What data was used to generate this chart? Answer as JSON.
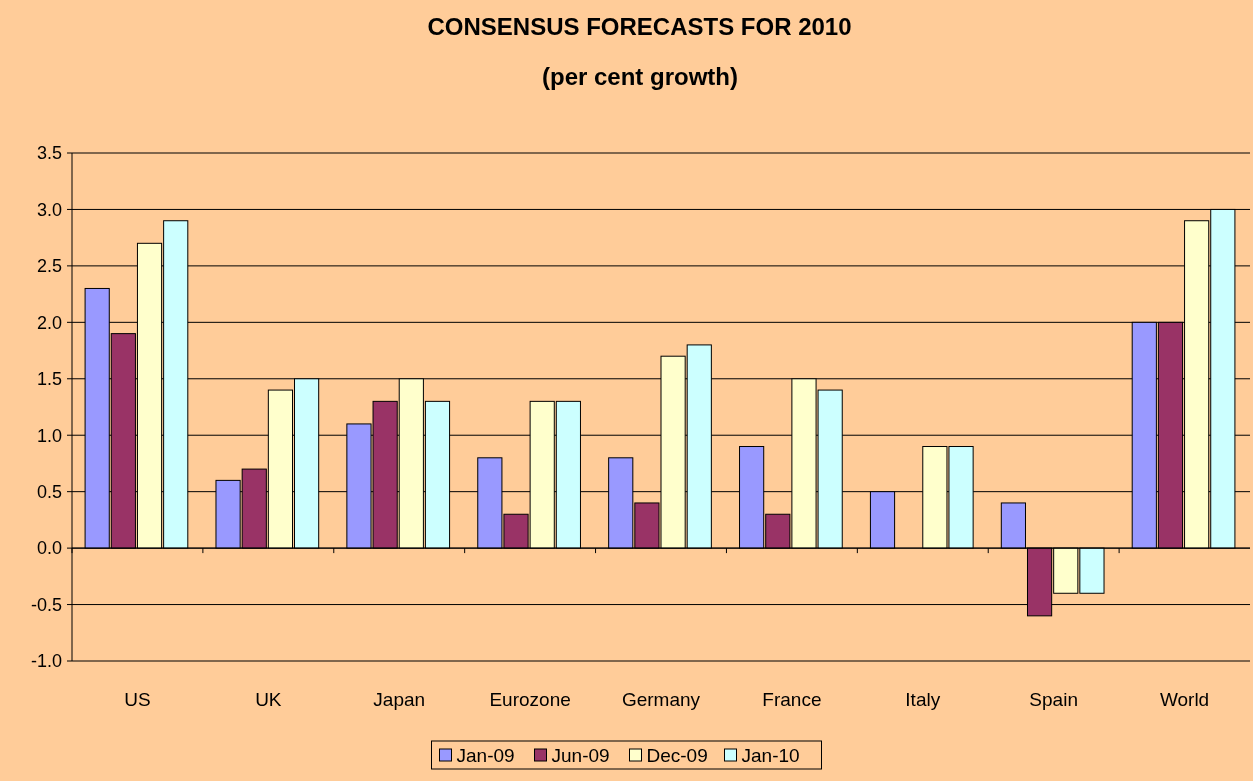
{
  "chart_data": {
    "type": "bar",
    "title": "CONSENSUS FORECASTS FOR 2010",
    "subtitle": "(per cent growth)",
    "categories": [
      "US",
      "UK",
      "Japan",
      "Eurozone",
      "Germany",
      "France",
      "Italy",
      "Spain",
      "World"
    ],
    "series": [
      {
        "name": "Jan-09",
        "color": "#9999ff",
        "values": [
          2.3,
          0.6,
          1.1,
          0.8,
          0.8,
          0.9,
          0.5,
          0.4,
          2.0
        ]
      },
      {
        "name": "Jun-09",
        "color": "#993366",
        "values": [
          1.9,
          0.7,
          1.3,
          0.3,
          0.4,
          0.3,
          null,
          -0.6,
          2.0
        ]
      },
      {
        "name": "Dec-09",
        "color": "#ffffcc",
        "values": [
          2.7,
          1.4,
          1.5,
          1.3,
          1.7,
          1.5,
          0.9,
          -0.4,
          2.9
        ]
      },
      {
        "name": "Jan-10",
        "color": "#ccffff",
        "values": [
          2.9,
          1.5,
          1.3,
          1.3,
          1.8,
          1.4,
          0.9,
          -0.4,
          3.0
        ]
      }
    ],
    "ylim": [
      -1.0,
      3.5
    ],
    "yticks": [
      {
        "value": -1,
        "label": "-1.0"
      },
      {
        "value": -0.5,
        "label": "-0.5"
      },
      {
        "value": 0,
        "label": "0.0"
      },
      {
        "value": 0.5,
        "label": "0.5"
      },
      {
        "value": 1,
        "label": "1.0"
      },
      {
        "value": 1.5,
        "label": "1.5"
      },
      {
        "value": 2,
        "label": "2.0"
      },
      {
        "value": 2.5,
        "label": "2.5"
      },
      {
        "value": 3,
        "label": "3.0"
      },
      {
        "value": 3.5,
        "label": "3.5"
      }
    ],
    "grid": "y",
    "legend": "bottom"
  }
}
